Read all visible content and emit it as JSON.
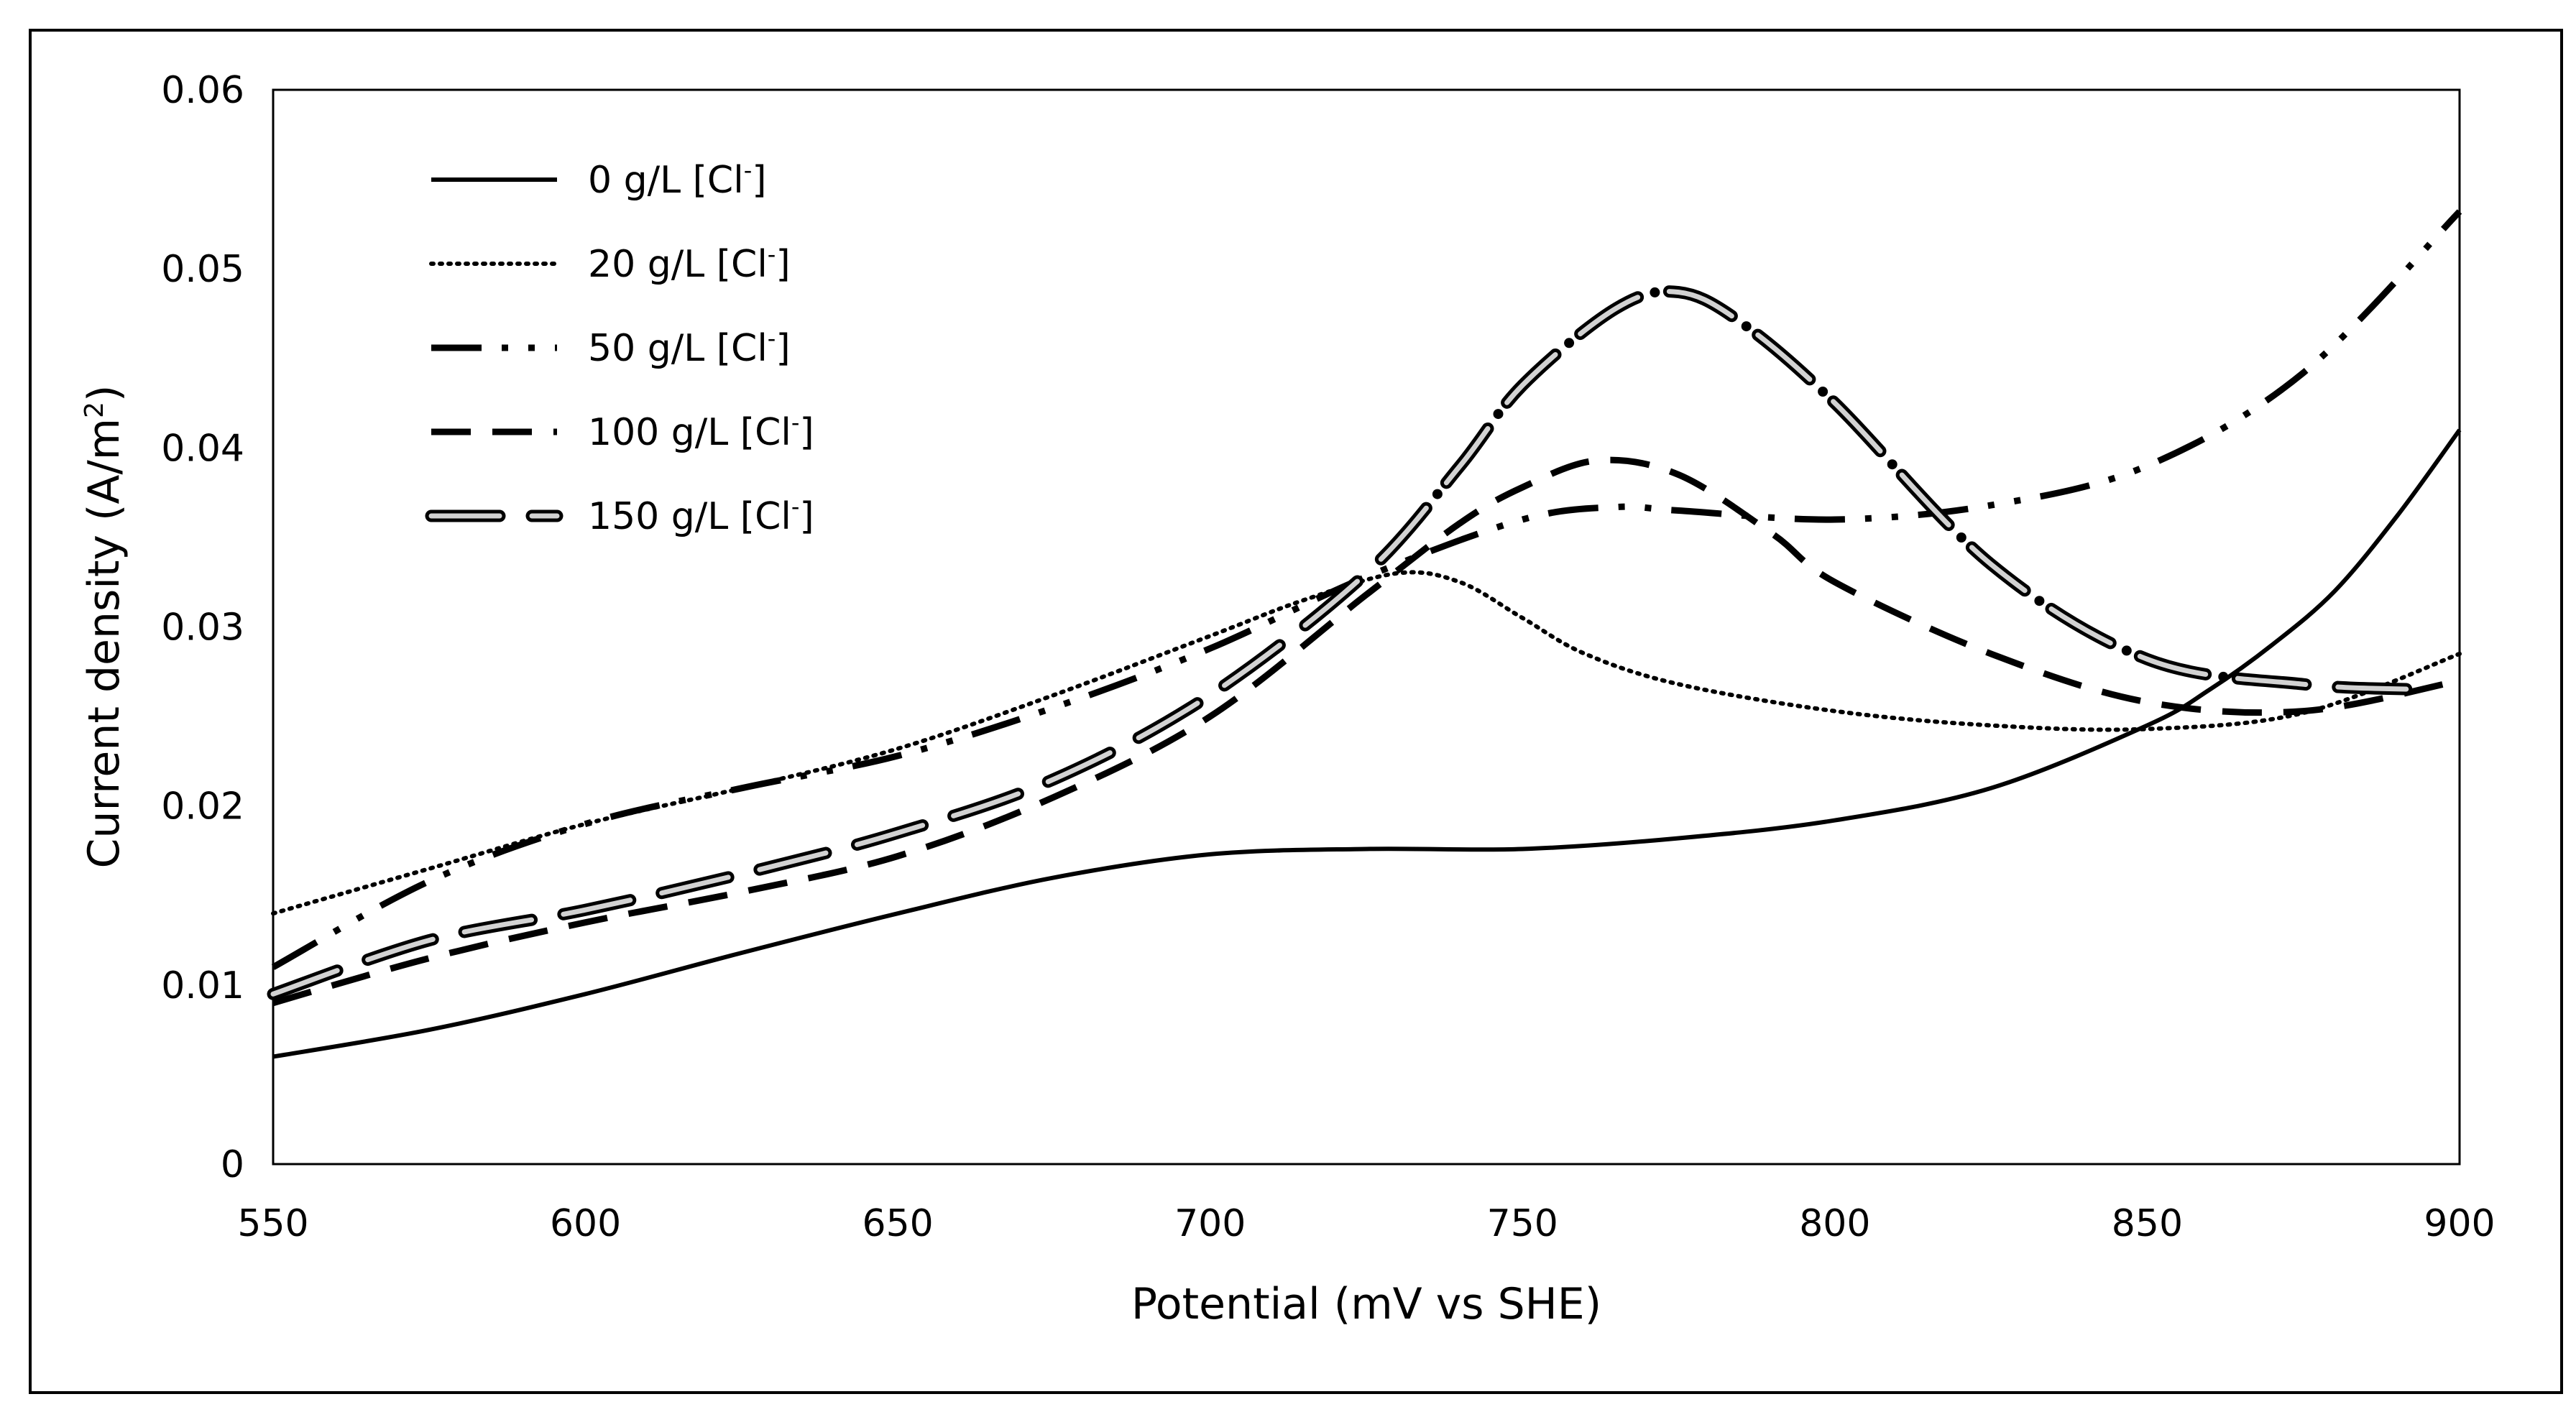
{
  "chart_data": {
    "type": "line",
    "title": "",
    "xlabel": "Potential (mV vs SHE)",
    "ylabel": "Current density (A/m²)",
    "ylabel_main": "Current density (A/m",
    "ylabel_sup": "2",
    "ylabel_end": ")",
    "xlim": [
      550,
      900
    ],
    "ylim": [
      0,
      0.06
    ],
    "xticks": [
      550,
      600,
      650,
      700,
      750,
      800,
      850,
      900
    ],
    "xtick_labels": [
      "550",
      "600",
      "650",
      "700",
      "750",
      "800",
      "850",
      "900"
    ],
    "yticks": [
      0,
      0.01,
      0.02,
      0.03,
      0.04,
      0.05,
      0.06
    ],
    "ytick_labels": [
      "0",
      "0.01",
      "0.02",
      "0.03",
      "0.04",
      "0.05",
      "0.06"
    ],
    "grid": false,
    "legend_position": "top-left",
    "series": [
      {
        "name": "0 g/L [Cl-]",
        "label_main": "0 g/L [Cl",
        "label_sup": "-",
        "label_end": "]",
        "style": "solid",
        "x": [
          550,
          575,
          600,
          625,
          650,
          675,
          700,
          725,
          750,
          775,
          800,
          825,
          850,
          860,
          870,
          880,
          890,
          900
        ],
        "y": [
          0.006,
          0.0075,
          0.0095,
          0.0118,
          0.014,
          0.016,
          0.0173,
          0.0176,
          0.0176,
          0.0182,
          0.0192,
          0.021,
          0.0245,
          0.0265,
          0.029,
          0.032,
          0.0362,
          0.041
        ]
      },
      {
        "name": "20 g/L [Cl-]",
        "label_main": "20 g/L [Cl",
        "label_sup": "-",
        "label_end": "]",
        "style": "dotted",
        "x": [
          550,
          575,
          600,
          625,
          650,
          675,
          700,
          715,
          730,
          740,
          750,
          760,
          775,
          800,
          825,
          850,
          875,
          900
        ],
        "y": [
          0.014,
          0.0165,
          0.019,
          0.021,
          0.0232,
          0.0262,
          0.0295,
          0.0315,
          0.033,
          0.0325,
          0.0305,
          0.0285,
          0.0268,
          0.0253,
          0.0245,
          0.0243,
          0.0252,
          0.0285
        ]
      },
      {
        "name": "50 g/L [Cl-]",
        "label_main": "50 g/L [Cl",
        "label_sup": "-",
        "label_end": "]",
        "style": "dash-dot-dot",
        "x": [
          550,
          575,
          600,
          625,
          650,
          675,
          700,
          725,
          750,
          765,
          775,
          800,
          825,
          850,
          875,
          900
        ],
        "y": [
          0.011,
          0.0158,
          0.019,
          0.021,
          0.0228,
          0.0255,
          0.0288,
          0.0328,
          0.036,
          0.0367,
          0.0365,
          0.036,
          0.0368,
          0.039,
          0.0442,
          0.0532
        ]
      },
      {
        "name": "100 g/L [Cl-]",
        "label_main": "100 g/L [Cl",
        "label_sup": "-",
        "label_end": "]",
        "style": "dashed",
        "x": [
          550,
          575,
          600,
          625,
          650,
          675,
          700,
          725,
          740,
          750,
          762,
          775,
          790,
          800,
          825,
          850,
          875,
          900
        ],
        "y": [
          0.009,
          0.0115,
          0.0135,
          0.0152,
          0.0172,
          0.0205,
          0.025,
          0.0318,
          0.0358,
          0.0378,
          0.0393,
          0.0385,
          0.0352,
          0.0325,
          0.0285,
          0.0258,
          0.0253,
          0.027
        ]
      },
      {
        "name": "150 g/L [Cl-]",
        "label_main": "150 g/L [Cl",
        "label_sup": "-",
        "label_end": "]",
        "style": "long-dash-outline",
        "x": [
          550,
          575,
          600,
          625,
          650,
          675,
          700,
          725,
          740,
          750,
          765,
          775,
          785,
          800,
          825,
          850,
          875,
          895
        ],
        "y": [
          0.0095,
          0.0125,
          0.0142,
          0.0162,
          0.0185,
          0.0215,
          0.0262,
          0.033,
          0.039,
          0.0435,
          0.0478,
          0.0487,
          0.047,
          0.0425,
          0.0335,
          0.0282,
          0.0268,
          0.0265
        ]
      }
    ]
  }
}
